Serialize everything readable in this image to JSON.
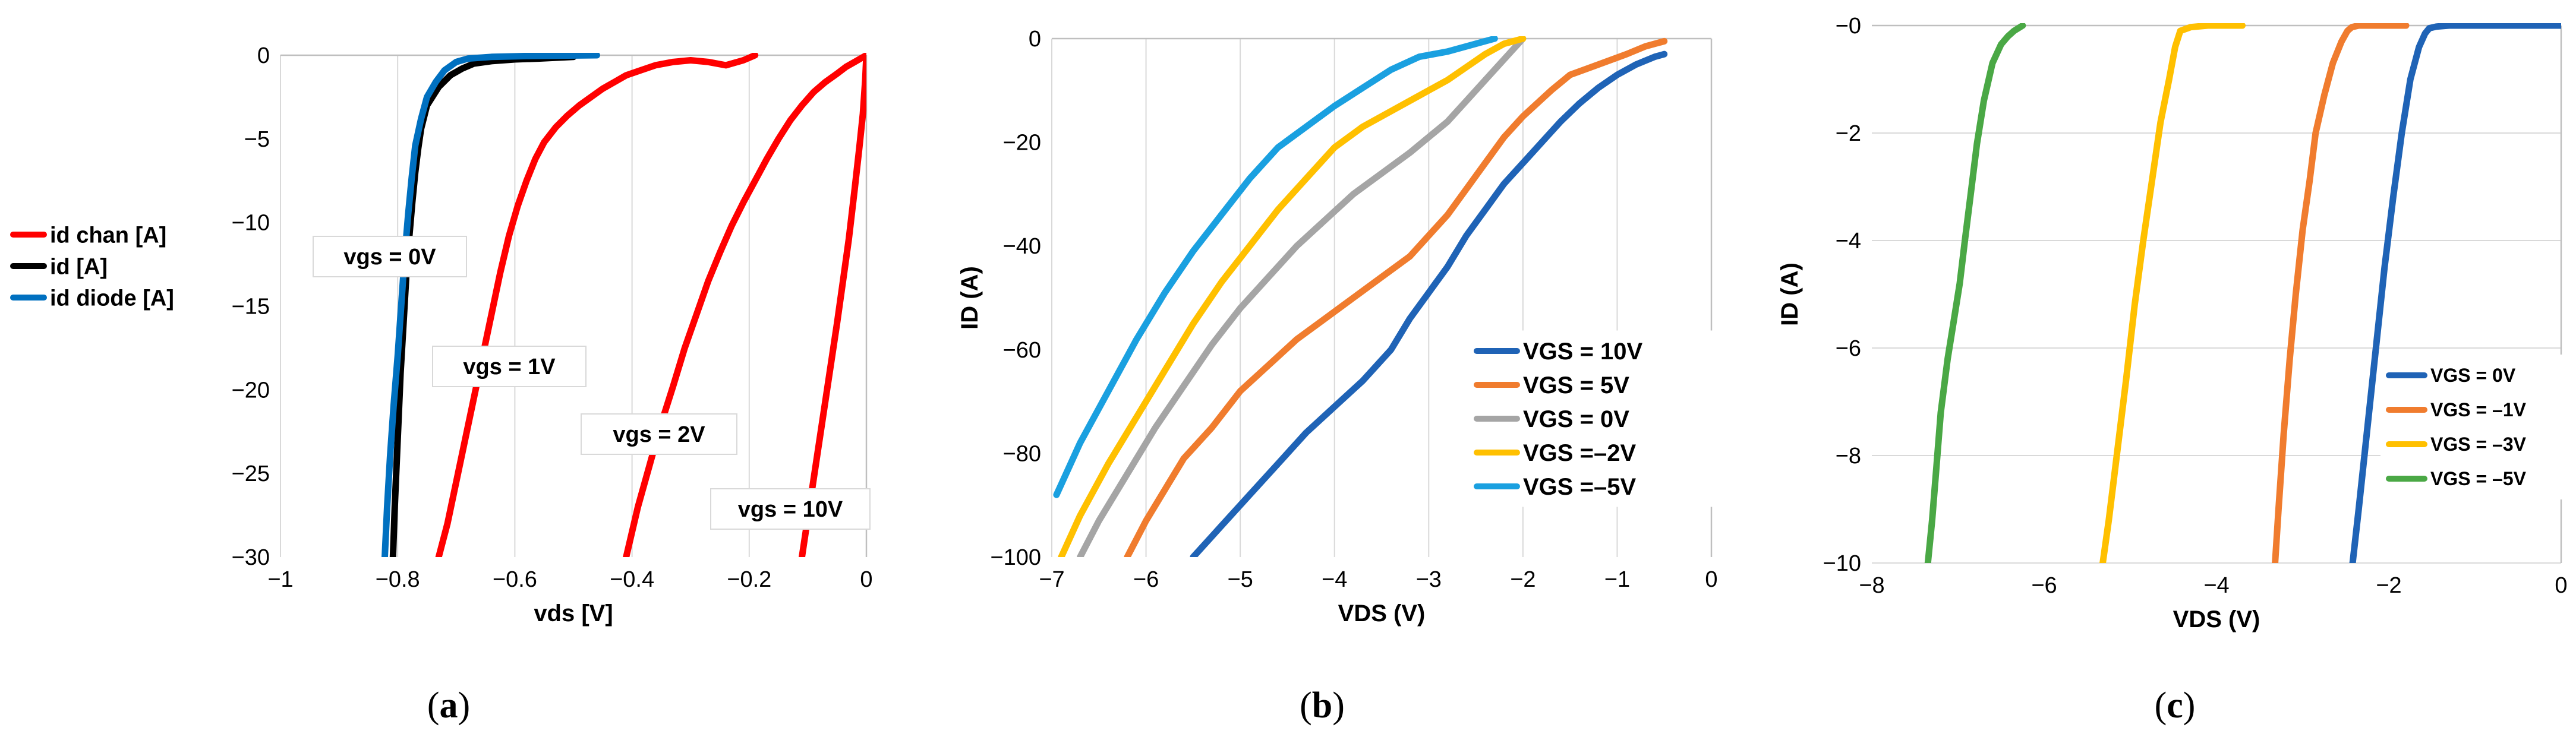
{
  "chart_data": [
    {
      "type": "line",
      "panel_label": "a",
      "title": "",
      "xlabel": "vds [V]",
      "ylabel": "",
      "xlim": [
        -1,
        0
      ],
      "ylim": [
        -30,
        0
      ],
      "xticks": [
        -1,
        -0.8,
        -0.6,
        -0.4,
        -0.2,
        0
      ],
      "xtick_labels": [
        "−1",
        "−0.8",
        "−0.6",
        "−0.4",
        "−0.2",
        "0"
      ],
      "yticks": [
        0,
        -5,
        -10,
        -15,
        -20,
        -25,
        -30
      ],
      "ytick_labels": [
        "0",
        "−5",
        "−10",
        "−15",
        "−20",
        "−25",
        "−30"
      ],
      "grid": "vertical",
      "legend_position": "left-outside",
      "series": [
        {
          "name": "id chan [A]",
          "legend": true,
          "color": "#ff0000",
          "x": [
            -0.73,
            -0.715,
            -0.7,
            -0.685,
            -0.67,
            -0.655,
            -0.64,
            -0.625,
            -0.61,
            -0.595,
            -0.58,
            -0.565,
            -0.55,
            -0.53,
            -0.51,
            -0.49,
            -0.47,
            -0.45,
            -0.43,
            -0.41,
            -0.385,
            -0.36,
            -0.33,
            -0.3,
            -0.27,
            -0.24,
            -0.21,
            -0.19
          ],
          "y": [
            -30,
            -28,
            -25.5,
            -23,
            -20.5,
            -18,
            -15.5,
            -13,
            -10.8,
            -9,
            -7.5,
            -6.2,
            -5.2,
            -4.3,
            -3.6,
            -3,
            -2.5,
            -2,
            -1.6,
            -1.2,
            -0.9,
            -0.6,
            -0.4,
            -0.3,
            -0.4,
            -0.6,
            -0.3,
            0
          ]
        },
        {
          "name": "id chan vgs=2V",
          "legend": false,
          "color": "#ff0000",
          "x": [
            -0.41,
            -0.39,
            -0.37,
            -0.35,
            -0.33,
            -0.31,
            -0.29,
            -0.27,
            -0.25,
            -0.23,
            -0.21,
            -0.19,
            -0.17,
            -0.15,
            -0.13,
            -0.11,
            -0.09,
            -0.07,
            -0.05,
            -0.035,
            -0.02,
            -0.01,
            0
          ],
          "y": [
            -30,
            -27,
            -24.5,
            -22,
            -19.8,
            -17.5,
            -15.5,
            -13.5,
            -11.8,
            -10.2,
            -8.8,
            -7.5,
            -6.2,
            -5,
            -3.9,
            -3,
            -2.2,
            -1.6,
            -1.1,
            -0.7,
            -0.4,
            -0.2,
            0
          ]
        },
        {
          "name": "id chan vgs=10V",
          "legend": false,
          "color": "#ff0000",
          "x": [
            -0.11,
            -0.095,
            -0.08,
            -0.065,
            -0.05,
            -0.04,
            -0.03,
            -0.02,
            -0.012,
            -0.006,
            -0.002,
            0
          ],
          "y": [
            -30,
            -26.5,
            -23,
            -19.5,
            -16,
            -13.5,
            -11,
            -8,
            -5.5,
            -3.5,
            -1.5,
            0
          ]
        },
        {
          "name": "id [A]",
          "legend": true,
          "color": "#000000",
          "x": [
            -0.808,
            -0.805,
            -0.8,
            -0.795,
            -0.79,
            -0.785,
            -0.78,
            -0.775,
            -0.77,
            -0.765,
            -0.76,
            -0.75,
            -0.73,
            -0.71,
            -0.69,
            -0.67,
            -0.64,
            -0.6,
            -0.56,
            -0.5
          ],
          "y": [
            -30,
            -27,
            -23,
            -19,
            -16,
            -13,
            -10.8,
            -8.8,
            -7,
            -5.6,
            -4.4,
            -3,
            -1.9,
            -1.2,
            -0.8,
            -0.5,
            -0.35,
            -0.25,
            -0.2,
            -0.1
          ]
        },
        {
          "name": "id diode [A]",
          "legend": true,
          "color": "#0070c0",
          "x": [
            -0.822,
            -0.818,
            -0.813,
            -0.807,
            -0.8,
            -0.794,
            -0.788,
            -0.782,
            -0.776,
            -0.77,
            -0.76,
            -0.75,
            -0.735,
            -0.72,
            -0.7,
            -0.68,
            -0.64,
            -0.58,
            -0.52,
            -0.46
          ],
          "y": [
            -30,
            -27,
            -24,
            -21,
            -18,
            -15,
            -12,
            -9.5,
            -7.3,
            -5.4,
            -3.8,
            -2.5,
            -1.6,
            -0.9,
            -0.4,
            -0.2,
            -0.1,
            -0.05,
            -0.02,
            0
          ]
        }
      ],
      "annotations": [
        "vgs = 0V",
        "vgs = 1V",
        "vgs = 2V",
        "vgs = 10V"
      ]
    },
    {
      "type": "line",
      "panel_label": "b",
      "title": "",
      "xlabel": "VDS (V)",
      "ylabel": "ID (A)",
      "xlim": [
        -7,
        0
      ],
      "ylim": [
        -100,
        0
      ],
      "xticks": [
        -7,
        -6,
        -5,
        -4,
        -3,
        -2,
        -1,
        0
      ],
      "xtick_labels": [
        "−7",
        "−6",
        "−5",
        "−4",
        "−3",
        "−2",
        "−1",
        "0"
      ],
      "yticks": [
        0,
        -20,
        -40,
        -60,
        -80,
        -100
      ],
      "ytick_labels": [
        "0",
        "−20",
        "−40",
        "−60",
        "−80",
        "−100"
      ],
      "grid": "vertical",
      "legend_position": "bottom-right",
      "series": [
        {
          "name": "VGS = 10V",
          "color": "#1f63b6",
          "x": [
            -5.5,
            -5.2,
            -4.9,
            -4.6,
            -4.3,
            -4.0,
            -3.7,
            -3.4,
            -3.2,
            -3.0,
            -2.8,
            -2.6,
            -2.4,
            -2.2,
            -2.0,
            -1.8,
            -1.6,
            -1.4,
            -1.2,
            -1.0,
            -0.8,
            -0.6,
            -0.5
          ],
          "y": [
            -100,
            -94,
            -88,
            -82,
            -76,
            -71,
            -66,
            -60,
            -54,
            -49,
            -44,
            -38,
            -33,
            -28,
            -24,
            -20,
            -16,
            -12.5,
            -9.5,
            -7,
            -5,
            -3.5,
            -3
          ]
        },
        {
          "name": "VGS = 5V",
          "color": "#f07c2e",
          "x": [
            -6.2,
            -6.0,
            -5.8,
            -5.6,
            -5.3,
            -5.0,
            -4.7,
            -4.4,
            -4.1,
            -3.8,
            -3.5,
            -3.2,
            -3.0,
            -2.8,
            -2.6,
            -2.4,
            -2.2,
            -2.0,
            -1.7,
            -1.5,
            -1.2,
            -0.9,
            -0.7,
            -0.5
          ],
          "y": [
            -100,
            -93,
            -87,
            -81,
            -75,
            -68,
            -63,
            -58,
            -54,
            -50,
            -46,
            -42,
            -38,
            -34,
            -29,
            -24,
            -19,
            -15,
            -10,
            -7,
            -5,
            -3,
            -1.5,
            -0.5
          ]
        },
        {
          "name": "VGS = 0V",
          "color": "#a5a5a5",
          "x": [
            -6.7,
            -6.5,
            -6.2,
            -5.9,
            -5.6,
            -5.3,
            -5.0,
            -4.7,
            -4.4,
            -4.1,
            -3.8,
            -3.5,
            -3.2,
            -3.0,
            -2.8,
            -2.6,
            -2.4,
            -2.2,
            -2.0
          ],
          "y": [
            -100,
            -93,
            -84,
            -75,
            -67,
            -59,
            -52,
            -46,
            -40,
            -35,
            -30,
            -26,
            -22,
            -19,
            -16,
            -12,
            -8,
            -4,
            0
          ]
        },
        {
          "name": "VGS =–2V",
          "color": "#ffc000",
          "x": [
            -6.9,
            -6.7,
            -6.4,
            -6.1,
            -5.8,
            -5.5,
            -5.2,
            -4.9,
            -4.6,
            -4.3,
            -4.0,
            -3.7,
            -3.4,
            -3.1,
            -2.8,
            -2.6,
            -2.4,
            -2.2,
            -2.0
          ],
          "y": [
            -100,
            -92,
            -82,
            -73,
            -64,
            -55,
            -47,
            -40,
            -33,
            -27,
            -21,
            -17,
            -14,
            -11,
            -8,
            -5.5,
            -3,
            -1,
            0
          ]
        },
        {
          "name": "VGS =–5V",
          "color": "#1aa0e0",
          "x": [
            -6.95,
            -6.7,
            -6.4,
            -6.1,
            -5.8,
            -5.5,
            -5.2,
            -4.9,
            -4.6,
            -4.3,
            -4.0,
            -3.7,
            -3.4,
            -3.1,
            -2.8,
            -2.5,
            -2.3
          ],
          "y": [
            -88,
            -78,
            -68,
            -58,
            -49,
            -41,
            -34,
            -27,
            -21,
            -17,
            -13,
            -9.5,
            -6,
            -3.5,
            -2.5,
            -1,
            0
          ]
        }
      ]
    },
    {
      "type": "line",
      "panel_label": "c",
      "title": "",
      "xlabel": "VDS (V)",
      "ylabel": "ID (A)",
      "xlim": [
        -8,
        0
      ],
      "ylim": [
        -10,
        0
      ],
      "xticks": [
        -8,
        -6,
        -4,
        -2,
        0
      ],
      "xtick_labels": [
        "−8",
        "−6",
        "−4",
        "−2",
        "0"
      ],
      "yticks": [
        0,
        -2,
        -4,
        -6,
        -8,
        -10
      ],
      "ytick_labels": [
        "−0",
        "−2",
        "−4",
        "−6",
        "−8",
        "−10"
      ],
      "grid": "horizontal",
      "legend_position": "bottom-right",
      "series": [
        {
          "name": "VGS = 0V",
          "color": "#1f63b6",
          "x": [
            -2.42,
            -2.35,
            -2.25,
            -2.15,
            -2.05,
            -1.95,
            -1.85,
            -1.75,
            -1.65,
            -1.58,
            -1.53,
            -1.45,
            -1.3,
            -1.1,
            -0.8,
            -0.5,
            -0.2,
            0
          ],
          "y": [
            -10,
            -9,
            -7.5,
            -6,
            -4.5,
            -3.2,
            -2,
            -1,
            -0.4,
            -0.15,
            -0.05,
            -0.02,
            0,
            0,
            0,
            0,
            0,
            0
          ]
        },
        {
          "name": "VGS = –1V",
          "color": "#f07c2e",
          "x": [
            -3.32,
            -3.28,
            -3.22,
            -3.15,
            -3.08,
            -3.0,
            -2.92,
            -2.85,
            -2.75,
            -2.65,
            -2.55,
            -2.48,
            -2.43,
            -2.35,
            -2.2,
            -2.0,
            -1.8
          ],
          "y": [
            -10,
            -9,
            -7.6,
            -6.2,
            -5,
            -3.8,
            -2.9,
            -2,
            -1.3,
            -0.7,
            -0.3,
            -0.1,
            -0.03,
            0,
            0,
            0,
            0
          ]
        },
        {
          "name": "VGS = –3V",
          "color": "#ffc000",
          "x": [
            -5.32,
            -5.25,
            -5.15,
            -5.05,
            -4.95,
            -4.85,
            -4.75,
            -4.65,
            -4.55,
            -4.48,
            -4.42,
            -4.3,
            -4.1,
            -3.9,
            -3.7
          ],
          "y": [
            -10,
            -9.2,
            -7.9,
            -6.6,
            -5.2,
            -4,
            -2.9,
            -1.8,
            -1,
            -0.4,
            -0.1,
            -0.03,
            0,
            0,
            0
          ]
        },
        {
          "name": "VGS = –5V",
          "color": "#4aa845",
          "x": [
            -7.35,
            -7.3,
            -7.25,
            -7.2,
            -7.12,
            -7.05,
            -6.98,
            -6.92,
            -6.85,
            -6.78,
            -6.7,
            -6.6,
            -6.5,
            -6.42,
            -6.35,
            -6.25
          ],
          "y": [
            -10,
            -9.2,
            -8.2,
            -7.2,
            -6.2,
            -5.5,
            -4.8,
            -4,
            -3.1,
            -2.2,
            -1.4,
            -0.7,
            -0.35,
            -0.2,
            -0.1,
            0
          ]
        }
      ]
    }
  ]
}
